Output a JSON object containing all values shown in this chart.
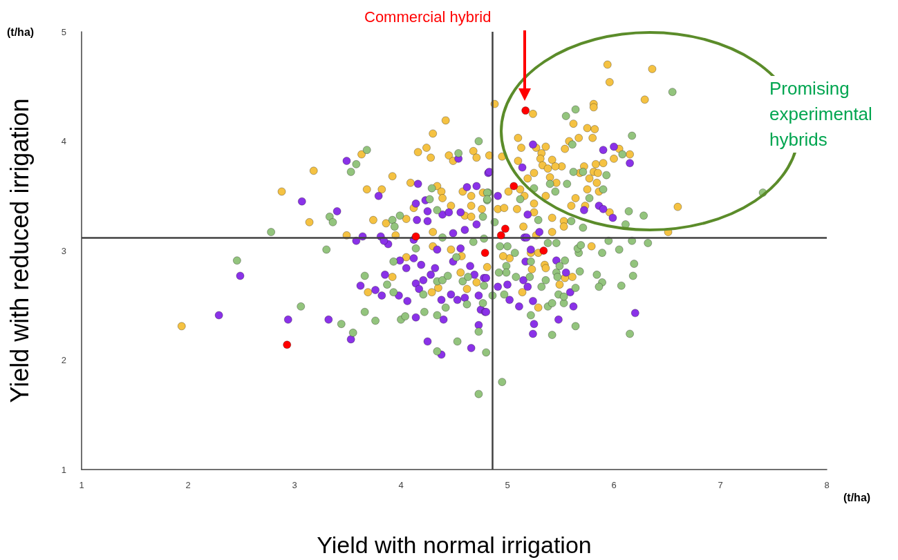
{
  "chart_data": {
    "type": "scatter",
    "xlabel": "Yield with normal irrigation",
    "ylabel": "Yield with reduced irrigation",
    "annotations": [
      "Commercial hybrid",
      "Promising experimental hybrids",
      "(t/ha)",
      "(t/ha)"
    ],
    "xlim": [
      1,
      8
    ],
    "ylim": [
      1,
      5
    ],
    "xticks": [
      1,
      2,
      3,
      4,
      5,
      6,
      7,
      8
    ],
    "yticks": [
      1,
      2,
      3,
      4,
      5
    ],
    "marker": "circle",
    "ref_lines": [
      {
        "axis": "x",
        "value": 4.86,
        "color": "#404040"
      },
      {
        "axis": "y",
        "value": 3.12,
        "color": "#404040"
      }
    ],
    "series": [
      {
        "color": "#f5c242",
        "x": [
          2.88,
          3.18,
          3.14,
          3.63,
          3.68,
          3.82,
          3.92,
          3.74,
          3.86,
          4.09,
          4.16,
          4.24,
          4.28,
          4.3,
          4.42,
          4.45,
          4.49,
          4.68,
          4.71,
          4.83,
          4.88,
          4.34,
          4.38,
          4.39,
          4.47,
          4.58,
          4.66,
          4.66,
          4.77,
          4.76,
          4.6,
          4.66,
          4.12,
          4.05,
          4.3,
          3.49,
          3.95,
          1.94,
          3.69,
          3.92,
          4.05,
          4.3,
          4.47,
          4.57,
          4.56,
          4.71,
          4.62,
          4.35,
          4.29,
          4.81,
          5.94,
          6.36,
          5.96,
          6.29,
          5.24,
          5.81,
          5.81,
          5.62,
          5.75,
          5.82,
          5.67,
          5.8,
          5.1,
          5.13,
          5.58,
          5.54,
          5.27,
          5.36,
          5.32,
          6.05,
          6.15,
          6.0,
          4.95,
          5.1,
          5.31,
          5.42,
          5.33,
          5.38,
          5.51,
          5.45,
          5.72,
          5.83,
          5.9,
          5.25,
          5.19,
          5.4,
          5.46,
          5.68,
          5.77,
          5.81,
          5.85,
          5.84,
          5.75,
          5.86,
          5.01,
          5.12,
          5.16,
          5.64,
          5.36,
          5.25,
          5.6,
          5.73,
          5.96,
          6.6,
          6.51,
          5.42,
          5.53,
          5.15,
          4.91,
          4.97,
          5.09,
          5.25,
          5.53,
          5.79,
          5.22,
          5.29,
          5.02,
          4.96,
          5.35,
          5.36,
          5.23,
          5.54,
          5.61,
          5.49,
          5.14,
          5.29,
          5.42,
          5.27
        ],
        "values": [
          3.54,
          3.73,
          3.26,
          3.88,
          3.56,
          3.56,
          3.68,
          3.28,
          3.25,
          3.62,
          3.9,
          3.94,
          3.85,
          4.07,
          4.19,
          3.87,
          3.82,
          3.91,
          3.85,
          3.87,
          4.34,
          3.59,
          3.54,
          3.48,
          3.41,
          3.54,
          3.5,
          3.41,
          3.53,
          3.38,
          3.32,
          3.31,
          3.39,
          3.29,
          3.17,
          3.14,
          3.14,
          2.31,
          2.62,
          2.76,
          2.94,
          3.04,
          3.01,
          2.95,
          2.8,
          2.71,
          2.65,
          2.66,
          2.62,
          2.85,
          4.7,
          4.66,
          4.54,
          4.38,
          4.25,
          4.34,
          4.31,
          4.16,
          4.12,
          4.11,
          4.03,
          4.03,
          4.03,
          3.94,
          4.0,
          3.93,
          3.94,
          3.95,
          3.89,
          3.93,
          3.88,
          3.84,
          3.86,
          3.82,
          3.84,
          3.83,
          3.78,
          3.75,
          3.77,
          3.77,
          3.77,
          3.79,
          3.8,
          3.71,
          3.66,
          3.67,
          3.62,
          3.71,
          3.66,
          3.72,
          3.71,
          3.62,
          3.56,
          3.54,
          3.54,
          3.56,
          3.5,
          3.48,
          3.5,
          3.43,
          3.41,
          3.41,
          3.35,
          3.4,
          3.17,
          3.3,
          3.27,
          3.22,
          3.38,
          3.39,
          3.38,
          3.35,
          3.22,
          3.04,
          2.98,
          2.98,
          2.93,
          2.95,
          2.87,
          2.84,
          2.83,
          2.75,
          2.76,
          2.69,
          2.62,
          2.48,
          3.17,
          3.14
        ]
      },
      {
        "color": "#8a32e8",
        "x": [
          3.49,
          3.07,
          3.4,
          3.79,
          4.16,
          4.14,
          4.23,
          4.25,
          4.15,
          4.25,
          4.39,
          4.45,
          4.56,
          4.62,
          4.71,
          4.54,
          4.82,
          4.6,
          4.71,
          4.49,
          3.64,
          3.81,
          3.58,
          3.88,
          2.49,
          2.29,
          2.94,
          3.32,
          3.53,
          3.62,
          3.76,
          3.82,
          3.85,
          3.98,
          4.06,
          3.99,
          4.05,
          4.12,
          4.19,
          4.21,
          4.14,
          4.17,
          4.14,
          4.32,
          4.28,
          4.38,
          4.4,
          4.25,
          4.38,
          4.47,
          4.53,
          4.6,
          4.65,
          4.69,
          4.78,
          4.73,
          4.75,
          4.79,
          4.73,
          4.66,
          4.49,
          4.56,
          4.34,
          4.12,
          3.84,
          5.24,
          5.9,
          6.0,
          6.15,
          5.14,
          4.83,
          4.91,
          5.19,
          5.86,
          5.9,
          5.99,
          5.72,
          5.3,
          5.17,
          5.22,
          5.46,
          5.55,
          5.19,
          5.0,
          4.91,
          5.15,
          5.02,
          5.11,
          5.24,
          5.25,
          5.24,
          5.48,
          5.59,
          5.62,
          6.2,
          4.8,
          4.8,
          5.16,
          5.18
        ],
        "values": [
          3.82,
          3.45,
          3.36,
          3.5,
          3.61,
          3.43,
          3.46,
          3.36,
          3.28,
          3.27,
          3.33,
          3.35,
          3.35,
          3.58,
          3.59,
          3.84,
          3.71,
          3.19,
          3.24,
          3.16,
          3.13,
          3.13,
          3.09,
          3.06,
          2.77,
          2.41,
          2.37,
          2.37,
          2.19,
          2.68,
          2.64,
          2.59,
          2.78,
          2.59,
          2.54,
          2.91,
          2.84,
          2.93,
          2.87,
          2.73,
          2.7,
          2.65,
          2.39,
          2.84,
          2.78,
          2.55,
          2.37,
          2.17,
          2.05,
          2.6,
          2.55,
          2.57,
          2.86,
          2.78,
          2.75,
          2.59,
          2.46,
          2.44,
          2.32,
          2.11,
          2.9,
          3.02,
          3.01,
          3.1,
          3.09,
          3.97,
          3.92,
          3.95,
          3.8,
          3.76,
          3.72,
          3.5,
          3.33,
          3.41,
          3.38,
          3.3,
          3.37,
          3.17,
          2.9,
          3.01,
          2.91,
          2.8,
          2.67,
          2.69,
          2.67,
          2.73,
          2.55,
          2.49,
          2.54,
          2.33,
          2.24,
          2.37,
          2.62,
          2.49,
          2.43,
          2.44,
          2.75,
          3.12,
          3.12
        ]
      },
      {
        "color": "#93c47d",
        "x": [
          2.78,
          3.33,
          3.36,
          3.53,
          3.58,
          3.68,
          3.92,
          3.94,
          3.99,
          4.29,
          4.27,
          4.34,
          4.54,
          4.73,
          4.77,
          4.81,
          4.82,
          4.39,
          4.68,
          4.78,
          4.14,
          3.3,
          2.46,
          3.06,
          3.44,
          3.55,
          3.66,
          3.66,
          3.76,
          3.87,
          3.93,
          3.93,
          4.0,
          4.04,
          4.22,
          4.34,
          4.34,
          4.53,
          4.42,
          4.62,
          4.73,
          4.8,
          4.73,
          4.34,
          4.39,
          4.44,
          4.58,
          4.63,
          4.78,
          4.21,
          4.77,
          4.52,
          4.95,
          5.42,
          5.64,
          6.15,
          5.22,
          5.53,
          5.38,
          5.42,
          5.48,
          5.53,
          5.64,
          5.32,
          5.36,
          4.97,
          4.86,
          5.08,
          5.21,
          5.22,
          5.46,
          5.47,
          5.68,
          5.84,
          5.89,
          5.86,
          6.07,
          6.18,
          6.19,
          6.05,
          5.89,
          5.67,
          5.66,
          5.69,
          5.95,
          6.17,
          6.32,
          5.46,
          5.54,
          5.49,
          4.99,
          5.0,
          5.07,
          4.93,
          4.99,
          4.92,
          5.38,
          6.55,
          5.64,
          5.55,
          6.17,
          6.08,
          5.61,
          5.62,
          5.93,
          5.56,
          5.9,
          5.45,
          5.4,
          5.77,
          6.14,
          6.28,
          7.4,
          5.25,
          5.29,
          5.6,
          5.71,
          6.11,
          4.81,
          4.81,
          5.12,
          4.88,
          5.71
        ],
        "values": [
          3.17,
          3.31,
          3.26,
          3.72,
          3.79,
          3.92,
          3.28,
          3.22,
          3.32,
          3.57,
          3.47,
          3.37,
          3.89,
          4.0,
          3.31,
          3.46,
          3.53,
          3.12,
          3.08,
          3.11,
          3.02,
          3.01,
          2.91,
          2.49,
          2.33,
          2.25,
          2.77,
          2.44,
          2.36,
          2.69,
          2.62,
          2.9,
          2.37,
          2.4,
          2.44,
          2.41,
          2.08,
          2.17,
          2.48,
          2.51,
          2.26,
          2.07,
          1.69,
          2.72,
          2.73,
          2.77,
          2.72,
          2.76,
          2.68,
          2.6,
          2.52,
          2.94,
          1.8,
          2.23,
          2.31,
          2.24,
          2.41,
          2.52,
          2.49,
          2.52,
          2.6,
          2.58,
          2.66,
          2.67,
          2.73,
          2.6,
          2.59,
          2.76,
          2.76,
          2.9,
          2.8,
          2.76,
          2.81,
          2.78,
          2.71,
          2.67,
          2.68,
          2.77,
          2.88,
          3.01,
          2.98,
          2.98,
          3.02,
          3.05,
          3.09,
          3.09,
          3.07,
          3.07,
          2.91,
          2.86,
          2.86,
          3.04,
          2.98,
          3.04,
          2.8,
          2.8,
          3.07,
          4.45,
          4.29,
          4.23,
          4.05,
          3.88,
          3.97,
          3.72,
          3.69,
          3.61,
          3.56,
          3.54,
          3.61,
          3.48,
          3.36,
          3.32,
          3.53,
          3.57,
          3.28,
          3.27,
          3.21,
          3.24,
          3.53,
          3.47,
          3.47,
          3.26,
          3.72
        ]
      },
      {
        "color": "#ff0000",
        "x": [
          5.17,
          5.06,
          4.98,
          4.94,
          4.14,
          4.79,
          5.34,
          2.93
        ],
        "values": [
          4.28,
          3.59,
          3.2,
          3.14,
          3.13,
          2.98,
          3.0,
          2.14
        ]
      }
    ]
  }
}
